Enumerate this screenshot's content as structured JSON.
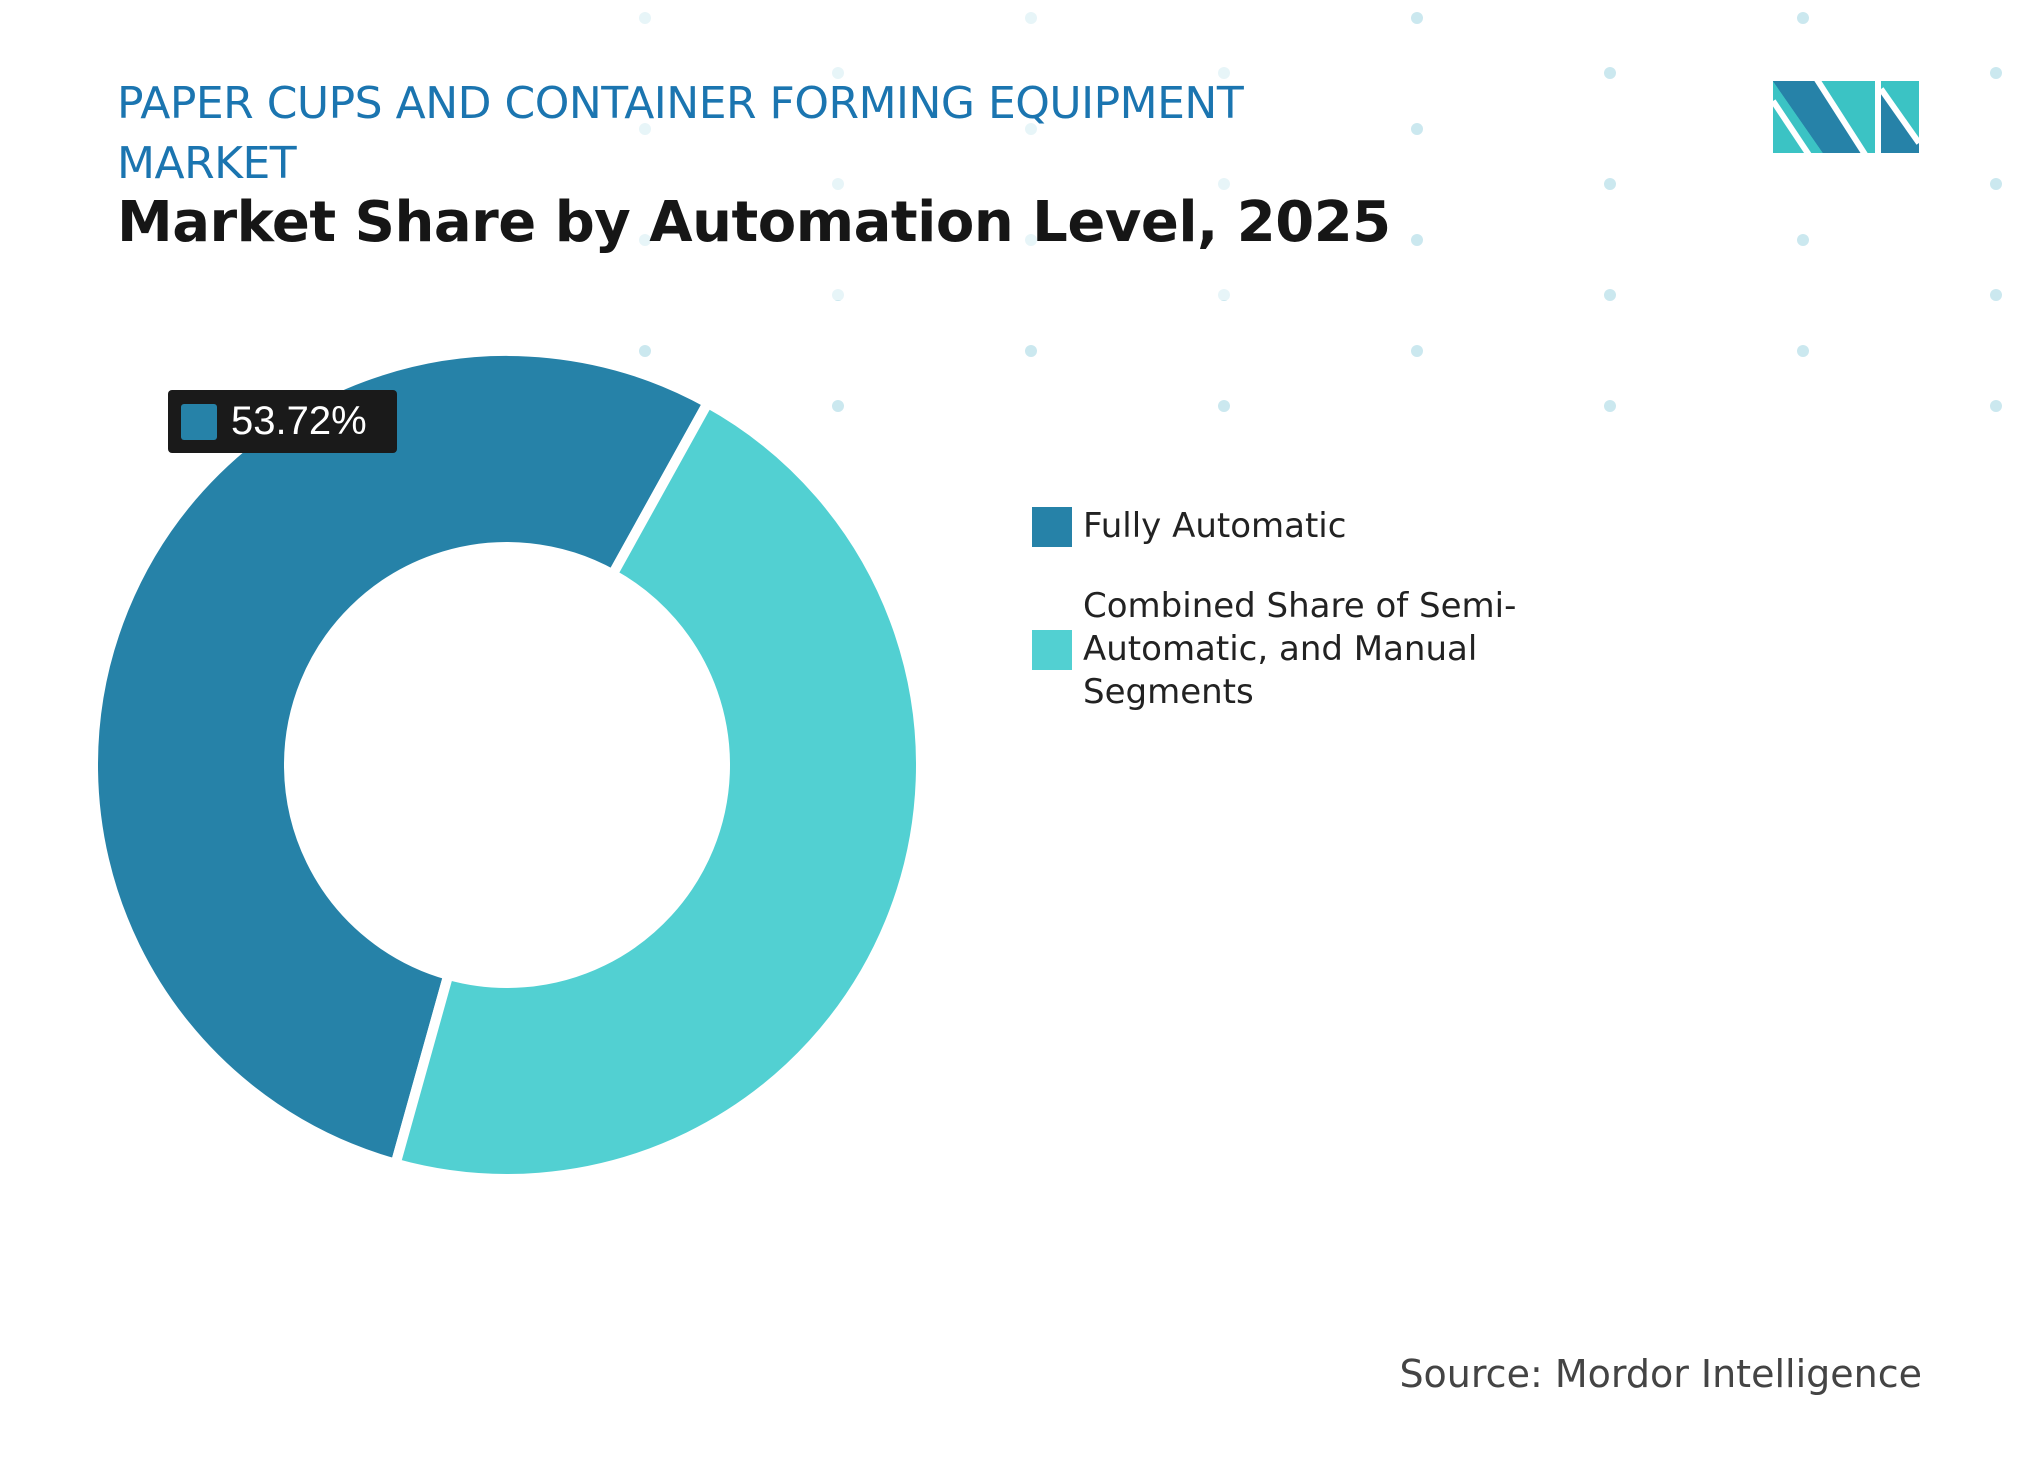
{
  "header": {
    "title": "PAPER CUPS AND CONTAINER FORMING EQUIPMENT MARKET",
    "subtitle": "Market Share by Automation Level, 2025"
  },
  "chart_data": {
    "type": "pie",
    "variant": "donut",
    "title": "Market Share by Automation Level, 2025",
    "categories": [
      "Fully Automatic",
      "Combined Share of Semi-Automatic, and Manual Segments"
    ],
    "values": [
      53.72,
      46.28
    ],
    "colors": [
      "#2682a8",
      "#52d0d2"
    ],
    "data_labels": [
      "53.72%"
    ],
    "legend_position": "right"
  },
  "source": "Source: Mordor Intelligence",
  "logo_text": "MI"
}
